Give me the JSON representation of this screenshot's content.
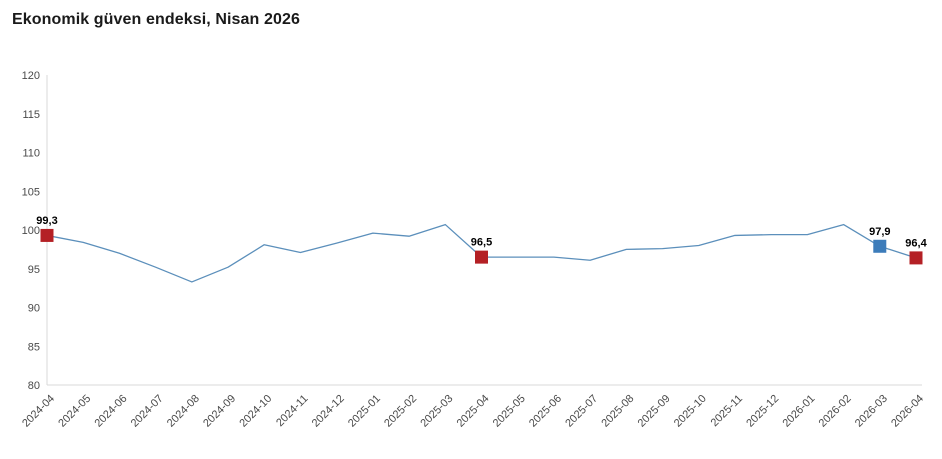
{
  "page": {
    "title": "Ekonomik güven endeksi, Nisan 2026"
  },
  "chart_data": {
    "type": "line",
    "title": "Ekonomik güven endeksi, Nisan 2026",
    "x": [
      "2024-04",
      "2024-05",
      "2024-06",
      "2024-07",
      "2024-08",
      "2024-09",
      "2024-10",
      "2024-11",
      "2024-12",
      "2025-01",
      "2025-02",
      "2025-03",
      "2025-04",
      "2025-05",
      "2025-06",
      "2025-07",
      "2025-08",
      "2025-09",
      "2025-10",
      "2025-11",
      "2025-12",
      "2026-01",
      "2026-02",
      "2026-03",
      "2026-04"
    ],
    "values": [
      99.3,
      98.4,
      97.0,
      95.2,
      93.3,
      95.2,
      98.1,
      97.1,
      98.3,
      99.6,
      99.2,
      100.7,
      96.5,
      96.5,
      96.5,
      96.1,
      97.5,
      97.6,
      98.0,
      99.3,
      99.4,
      99.4,
      100.7,
      97.9,
      96.4
    ],
    "ylim": [
      80,
      120
    ],
    "yticks": [
      80,
      85,
      90,
      95,
      100,
      105,
      110,
      115,
      120
    ],
    "grid": false,
    "legend": false,
    "xlabel": "",
    "ylabel": "",
    "line_color": "#5b8fbb",
    "axis_color": "#d8d8d8",
    "tick_label_color": "#4a4a4a",
    "marker_size": 13,
    "markers": [
      {
        "x": "2024-04",
        "value": 99.3,
        "label": "99,3",
        "color": "#b42025"
      },
      {
        "x": "2025-04",
        "value": 96.5,
        "label": "96,5",
        "color": "#b42025"
      },
      {
        "x": "2026-03",
        "value": 97.9,
        "label": "97,9",
        "color": "#3c7cba"
      },
      {
        "x": "2026-04",
        "value": 96.4,
        "label": "96,4",
        "color": "#b42025"
      }
    ]
  }
}
